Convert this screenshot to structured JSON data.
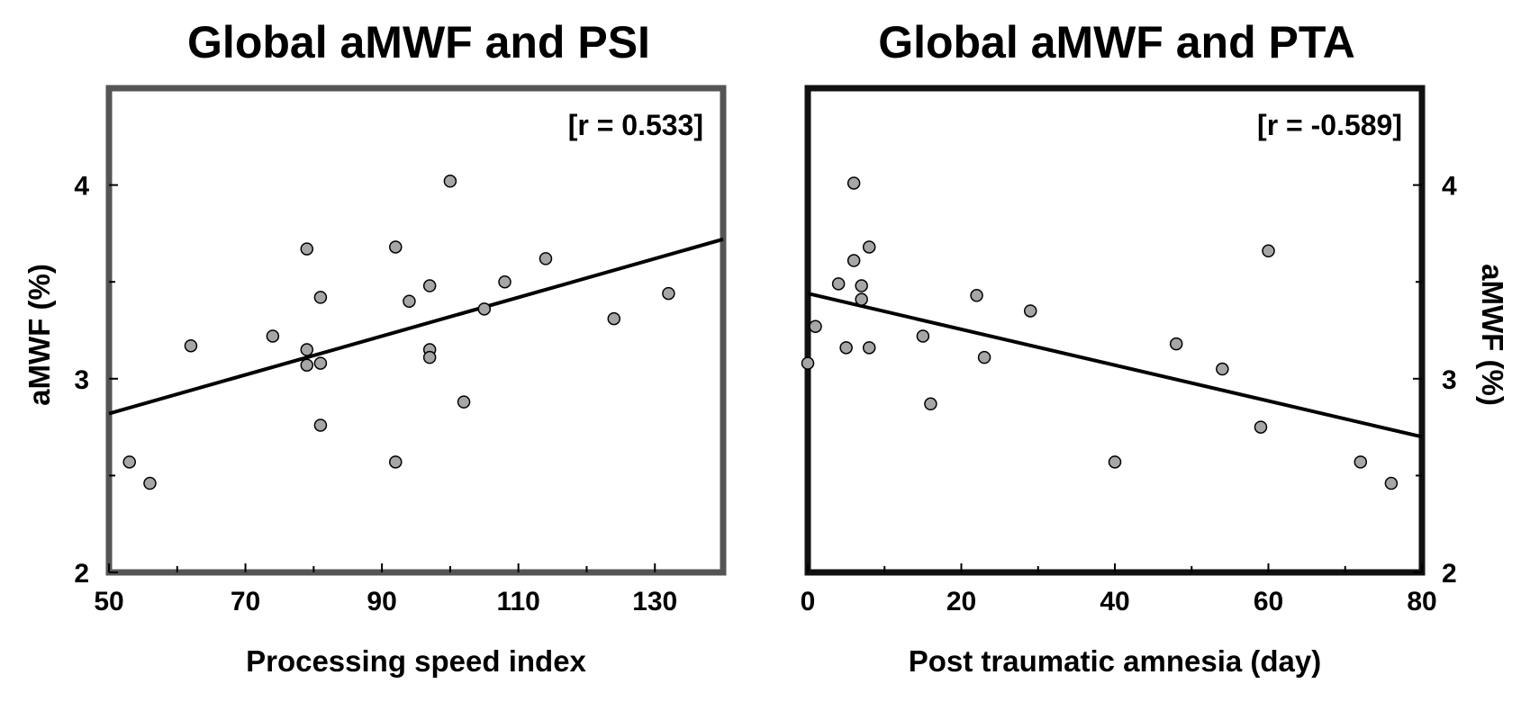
{
  "chart_data": [
    {
      "type": "scatter",
      "title": "Global aMWF and PSI",
      "xlabel": "Processing speed index",
      "ylabel": "aMWF (%)",
      "annotation": "[r = 0.533]",
      "xlim": [
        50,
        140
      ],
      "ylim": [
        2,
        4.5
      ],
      "xticks": [
        50,
        70,
        90,
        110,
        130
      ],
      "yticks": [
        2,
        3,
        4
      ],
      "frame_color": "#555555",
      "ylabel_side": "left",
      "fit_line": {
        "x": [
          50,
          140
        ],
        "y": [
          2.82,
          3.72
        ]
      },
      "points": [
        {
          "x": 53,
          "y": 2.57
        },
        {
          "x": 56,
          "y": 2.46
        },
        {
          "x": 62,
          "y": 3.17
        },
        {
          "x": 74,
          "y": 3.22
        },
        {
          "x": 79,
          "y": 3.67
        },
        {
          "x": 79,
          "y": 3.15
        },
        {
          "x": 79,
          "y": 3.07
        },
        {
          "x": 81,
          "y": 3.42
        },
        {
          "x": 81,
          "y": 3.08
        },
        {
          "x": 81,
          "y": 2.76
        },
        {
          "x": 92,
          "y": 3.68
        },
        {
          "x": 92,
          "y": 2.57
        },
        {
          "x": 94,
          "y": 3.4
        },
        {
          "x": 97,
          "y": 3.48
        },
        {
          "x": 97,
          "y": 3.15
        },
        {
          "x": 97,
          "y": 3.11
        },
        {
          "x": 100,
          "y": 4.02
        },
        {
          "x": 102,
          "y": 2.88
        },
        {
          "x": 105,
          "y": 3.36
        },
        {
          "x": 108,
          "y": 3.5
        },
        {
          "x": 114,
          "y": 3.62
        },
        {
          "x": 124,
          "y": 3.31
        },
        {
          "x": 132,
          "y": 3.44
        }
      ]
    },
    {
      "type": "scatter",
      "title": "Global aMWF and PTA",
      "xlabel": "Post traumatic amnesia (day)",
      "ylabel": "aMWF (%)",
      "annotation": "[r = -0.589]",
      "xlim": [
        0,
        80
      ],
      "ylim": [
        2,
        4.5
      ],
      "xticks": [
        0,
        20,
        40,
        60,
        80
      ],
      "yticks": [
        2,
        3,
        4
      ],
      "frame_color": "#111111",
      "ylabel_side": "right",
      "fit_line": {
        "x": [
          0,
          80
        ],
        "y": [
          3.44,
          2.7
        ]
      },
      "points": [
        {
          "x": 0,
          "y": 3.08
        },
        {
          "x": 1,
          "y": 3.27
        },
        {
          "x": 4,
          "y": 3.49
        },
        {
          "x": 5,
          "y": 3.16
        },
        {
          "x": 6,
          "y": 4.01
        },
        {
          "x": 6,
          "y": 3.61
        },
        {
          "x": 7,
          "y": 3.48
        },
        {
          "x": 7,
          "y": 3.41
        },
        {
          "x": 8,
          "y": 3.68
        },
        {
          "x": 8,
          "y": 3.16
        },
        {
          "x": 15,
          "y": 3.22
        },
        {
          "x": 16,
          "y": 2.87
        },
        {
          "x": 22,
          "y": 3.43
        },
        {
          "x": 23,
          "y": 3.11
        },
        {
          "x": 29,
          "y": 3.35
        },
        {
          "x": 40,
          "y": 2.57
        },
        {
          "x": 48,
          "y": 3.18
        },
        {
          "x": 54,
          "y": 3.05
        },
        {
          "x": 59,
          "y": 2.75
        },
        {
          "x": 60,
          "y": 3.66
        },
        {
          "x": 72,
          "y": 2.57
        },
        {
          "x": 76,
          "y": 2.46
        }
      ]
    }
  ]
}
